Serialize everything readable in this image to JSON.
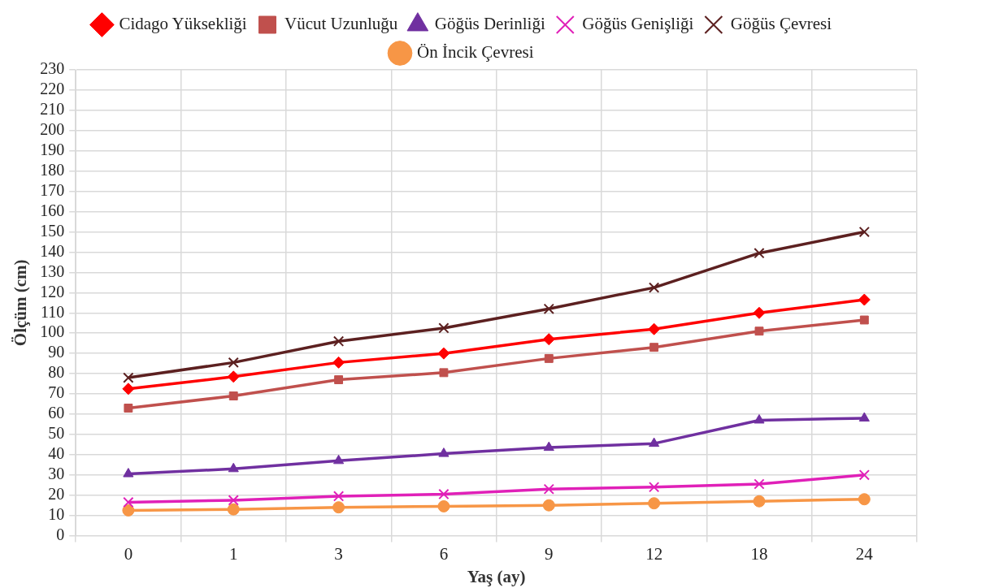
{
  "chart_data": {
    "type": "line",
    "xlabel": "Yaş (ay)",
    "ylabel": "Ölçüm (cm)",
    "categories": [
      "0",
      "1",
      "3",
      "6",
      "9",
      "12",
      "18",
      "24"
    ],
    "ylim": [
      0,
      230
    ],
    "yticks": [
      0,
      10,
      20,
      30,
      40,
      50,
      60,
      70,
      80,
      90,
      100,
      110,
      120,
      130,
      140,
      150,
      160,
      170,
      180,
      190,
      200,
      210,
      220,
      230
    ],
    "grid": true,
    "legend": "top",
    "line_style": "solid",
    "series": [
      {
        "name": "Cidago Yüksekliği",
        "color": "#ff0000",
        "marker": "diamond",
        "values": [
          72.5,
          78.5,
          85.5,
          90,
          97,
          102,
          110,
          116.5
        ]
      },
      {
        "name": "Vücut Uzunluğu",
        "color": "#c0504d",
        "marker": "square",
        "values": [
          63,
          69,
          77,
          80.5,
          87.5,
          93,
          101,
          106.5
        ]
      },
      {
        "name": "Göğüs Derinliği",
        "color": "#7030a0",
        "marker": "triangle",
        "values": [
          30.5,
          33,
          37,
          40.5,
          43.5,
          45.5,
          57,
          58
        ]
      },
      {
        "name": "Göğüs Genişliği",
        "color": "#e020b8",
        "marker": "cross",
        "values": [
          16.5,
          17.5,
          19.5,
          20.5,
          23,
          24,
          25.5,
          30
        ]
      },
      {
        "name": "Göğüs Çevresi",
        "color": "#5c2020",
        "marker": "cross",
        "values": [
          78,
          85.5,
          96,
          102.5,
          112,
          122.5,
          139.5,
          150
        ]
      },
      {
        "name": "Ön İncik Çevresi",
        "color": "#f79646",
        "marker": "circle",
        "values": [
          12.5,
          13,
          14,
          14.5,
          15,
          16,
          17,
          18
        ]
      }
    ]
  }
}
